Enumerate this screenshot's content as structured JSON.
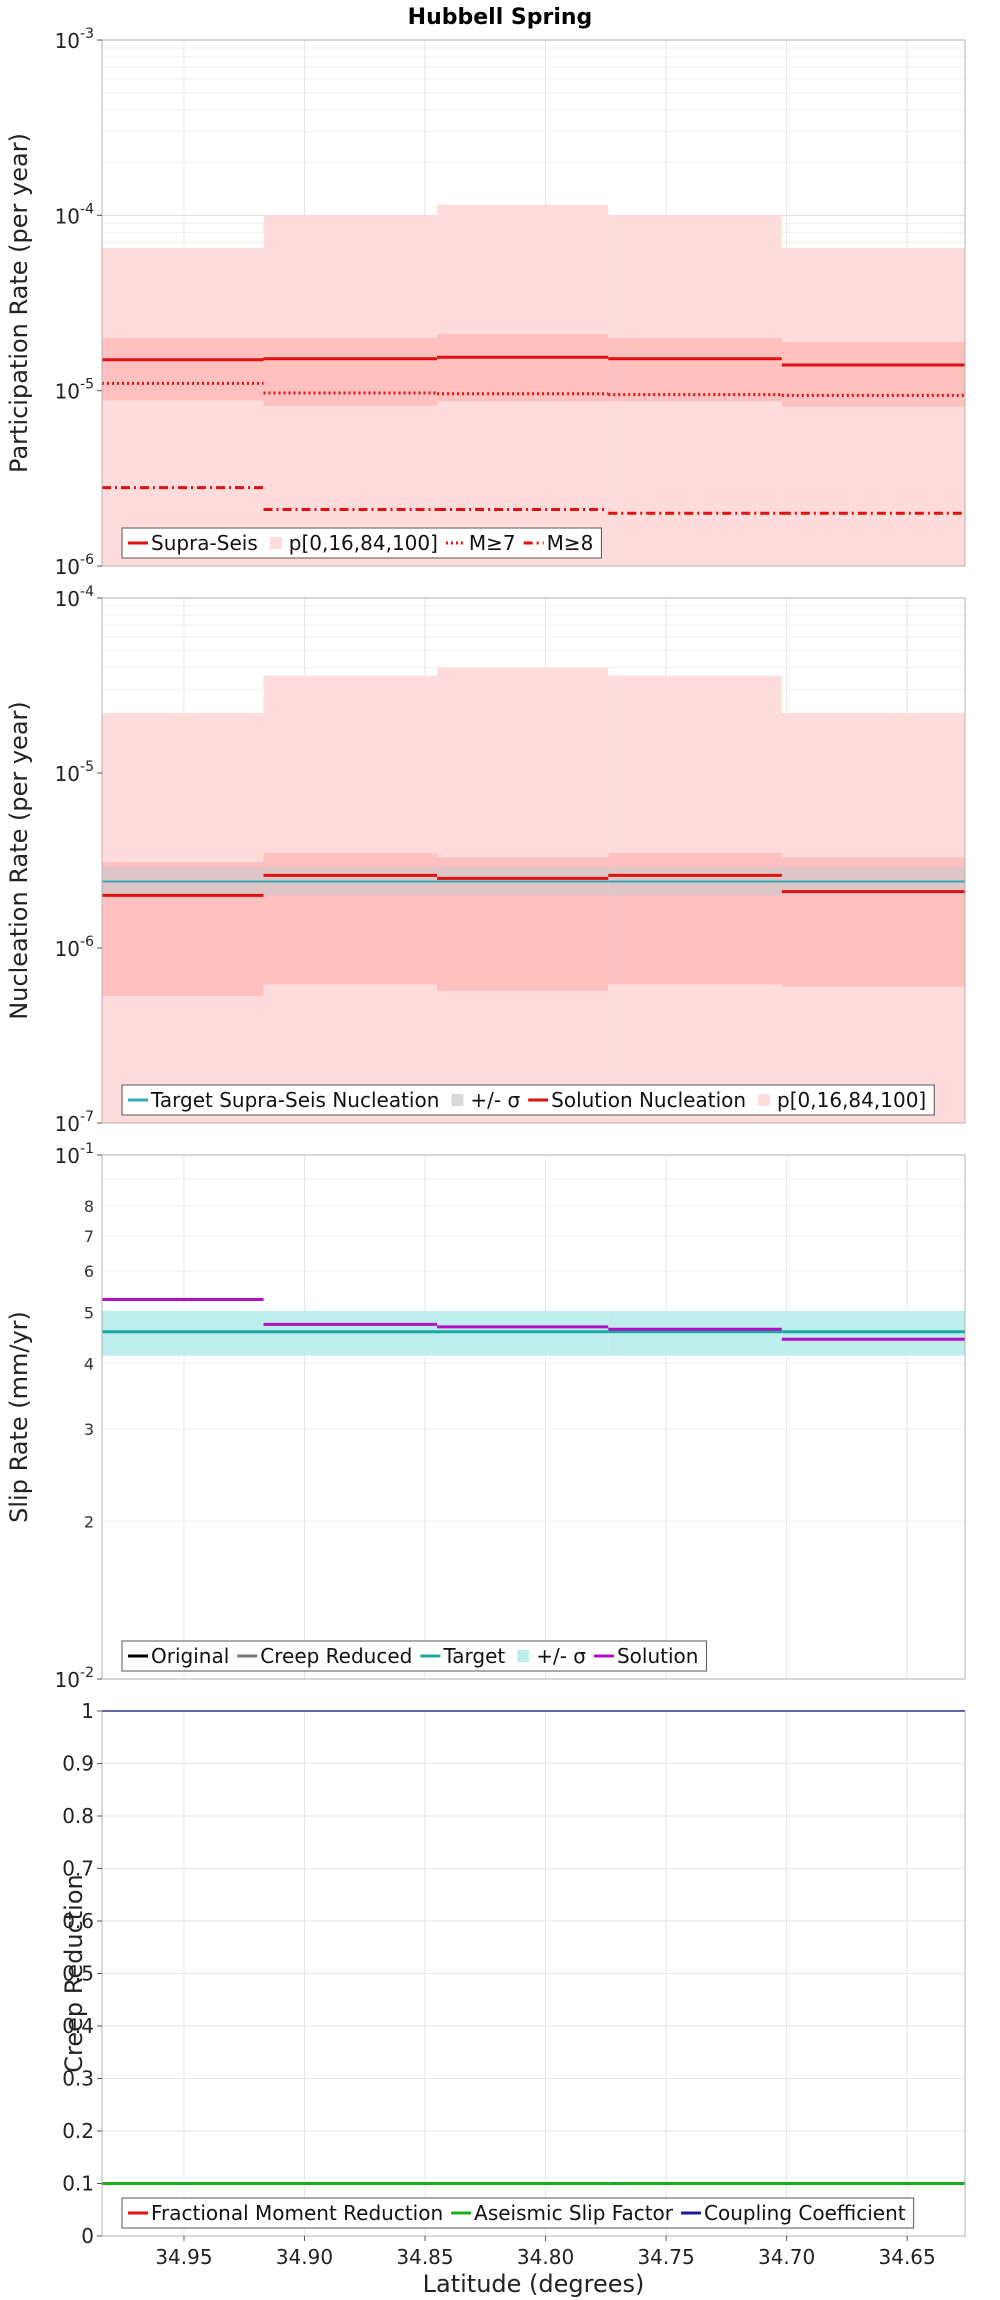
{
  "title": "Hubbell Spring",
  "x_label": "Latitude (degrees)",
  "x_ticks": [
    "34.95",
    "34.90",
    "34.85",
    "34.80",
    "34.75",
    "34.70",
    "34.65"
  ],
  "chart_data": [
    {
      "type": "line",
      "ylabel": "Participation Rate (per year)",
      "yscale": "log",
      "ylim": [
        1e-06,
        0.001
      ],
      "xlim": [
        34.984,
        34.626
      ],
      "y_ticks": [
        {
          "v": 0.001,
          "base": "10",
          "exp": "-3"
        },
        {
          "v": 0.0001,
          "base": "10",
          "exp": "-4"
        },
        {
          "v": 1e-05,
          "base": "10",
          "exp": "-5"
        },
        {
          "v": 1e-06,
          "base": "10",
          "exp": "-6"
        }
      ],
      "segment_edges": [
        34.984,
        34.917,
        34.845,
        34.774,
        34.702,
        34.626
      ],
      "series": [
        {
          "name": "p[0,16,84,100]",
          "kind": "band",
          "color": "#ffdcdc",
          "low": [
            1e-06,
            1e-06,
            1e-06,
            1e-06,
            1e-06
          ],
          "high": [
            6.5e-05,
            0.0001,
            0.000115,
            0.0001,
            6.5e-05
          ]
        },
        {
          "name": "",
          "kind": "band",
          "color": "#ffc0c0",
          "low": [
            8.8e-06,
            8.2e-06,
            8.7e-06,
            8.7e-06,
            8.1e-06
          ],
          "high": [
            2e-05,
            2e-05,
            2.1e-05,
            2e-05,
            1.9e-05
          ]
        },
        {
          "name": "Supra-Seis",
          "kind": "step",
          "color": "#e31010",
          "dash": "",
          "values": [
            1.5e-05,
            1.52e-05,
            1.55e-05,
            1.52e-05,
            1.4e-05
          ]
        },
        {
          "name": "M≥7",
          "kind": "step",
          "color": "#e31010",
          "dash": "2,3",
          "values": [
            1.1e-05,
            9.7e-06,
            9.6e-06,
            9.5e-06,
            9.4e-06
          ]
        },
        {
          "name": "M≥8",
          "kind": "step",
          "color": "#e31010",
          "dash": "9,4,2,4",
          "values": [
            2.8e-06,
            2.1e-06,
            2.1e-06,
            2e-06,
            2e-06
          ]
        }
      ],
      "legend": [
        {
          "label": "Supra-Seis",
          "swatch": "line",
          "color": "#e31010",
          "dash": ""
        },
        {
          "label": "p[0,16,84,100]",
          "swatch": "box",
          "color": "#ffdcdc",
          "dash": ""
        },
        {
          "label": "M≥7",
          "swatch": "line",
          "color": "#e31010",
          "dash": "2,3"
        },
        {
          "label": "M≥8",
          "swatch": "line",
          "color": "#e31010",
          "dash": "9,4,2,4"
        }
      ]
    },
    {
      "type": "line",
      "ylabel": "Nucleation Rate (per year)",
      "yscale": "log",
      "ylim": [
        1e-07,
        0.0001
      ],
      "xlim": [
        34.984,
        34.626
      ],
      "y_ticks": [
        {
          "v": 0.0001,
          "base": "10",
          "exp": "-4"
        },
        {
          "v": 1e-05,
          "base": "10",
          "exp": "-5"
        },
        {
          "v": 1e-06,
          "base": "10",
          "exp": "-6"
        },
        {
          "v": 1e-07,
          "base": "10",
          "exp": "-7"
        }
      ],
      "segment_edges": [
        34.984,
        34.917,
        34.845,
        34.774,
        34.702,
        34.626
      ],
      "series": [
        {
          "name": "p[0,16,84,100]",
          "kind": "band",
          "color": "#ffdcdc",
          "low": [
            1e-07,
            1e-07,
            1e-07,
            1e-07,
            1e-07
          ],
          "high": [
            2.2e-05,
            3.6e-05,
            4e-05,
            3.6e-05,
            2.2e-05
          ]
        },
        {
          "name": "",
          "kind": "band",
          "color": "#ffc0c0",
          "low": [
            5.3e-07,
            6.2e-07,
            5.7e-07,
            6.2e-07,
            6e-07
          ],
          "high": [
            3.1e-06,
            3.5e-06,
            3.3e-06,
            3.5e-06,
            3.3e-06
          ]
        },
        {
          "name": "+/- σ",
          "kind": "band",
          "color": "#c9c9c9",
          "opacity": 0.6,
          "low": [
            2e-06,
            2e-06,
            2e-06,
            2e-06,
            2e-06
          ],
          "high": [
            2.9e-06,
            2.9e-06,
            2.9e-06,
            2.9e-06,
            2.9e-06
          ]
        },
        {
          "name": "Target Supra-Seis Nucleation",
          "kind": "step",
          "color": "#3aa8b8",
          "dash": "",
          "values": [
            2.4e-06,
            2.4e-06,
            2.4e-06,
            2.4e-06,
            2.4e-06
          ],
          "width": 2
        },
        {
          "name": "Solution Nucleation",
          "kind": "step",
          "color": "#e31010",
          "dash": "",
          "values": [
            2e-06,
            2.6e-06,
            2.5e-06,
            2.6e-06,
            2.1e-06
          ]
        }
      ],
      "legend": [
        {
          "label": "Target Supra-Seis Nucleation",
          "swatch": "line",
          "color": "#3aa8b8",
          "dash": ""
        },
        {
          "label": "+/- σ",
          "swatch": "box",
          "color": "#d8d8d8",
          "dash": ""
        },
        {
          "label": "Solution Nucleation",
          "swatch": "line",
          "color": "#e31010",
          "dash": ""
        },
        {
          "label": "p[0,16,84,100]",
          "swatch": "box",
          "color": "#ffdcdc",
          "dash": ""
        }
      ]
    },
    {
      "type": "line",
      "ylabel": "Slip Rate (mm/yr)",
      "yscale": "log",
      "ylim": [
        0.01,
        0.1
      ],
      "xlim": [
        34.984,
        34.626
      ],
      "y_ticks": [
        {
          "v": 0.1,
          "base": "10",
          "exp": "-1"
        },
        {
          "v": 0.01,
          "base": "10",
          "exp": "-2"
        }
      ],
      "y_minor_labels": [
        "2",
        "3",
        "4",
        "5",
        "6",
        "7",
        "8"
      ],
      "segment_edges": [
        34.984,
        34.917,
        34.845,
        34.774,
        34.702,
        34.626
      ],
      "series": [
        {
          "name": "+/- σ",
          "kind": "band",
          "color": "#bfeeee",
          "low": [
            0.0414,
            0.0414,
            0.0414,
            0.0414,
            0.0414
          ],
          "high": [
            0.0504,
            0.0504,
            0.0504,
            0.0504,
            0.0504
          ]
        },
        {
          "name": "Target",
          "kind": "step",
          "color": "#1aa8a0",
          "dash": "",
          "values": [
            0.046,
            0.046,
            0.046,
            0.046,
            0.046
          ]
        },
        {
          "name": "Solution",
          "kind": "step",
          "color": "#b010c0",
          "dash": "",
          "values": [
            0.053,
            0.0475,
            0.047,
            0.0465,
            0.0445
          ]
        }
      ],
      "legend": [
        {
          "label": "Original",
          "swatch": "line",
          "color": "#000000",
          "dash": ""
        },
        {
          "label": "Creep Reduced",
          "swatch": "line",
          "color": "#777777",
          "dash": ""
        },
        {
          "label": "Target",
          "swatch": "line",
          "color": "#1aa8a0",
          "dash": ""
        },
        {
          "label": "+/- σ",
          "swatch": "box",
          "color": "#bfeeee",
          "dash": ""
        },
        {
          "label": "Solution",
          "swatch": "line",
          "color": "#b010c0",
          "dash": ""
        }
      ]
    },
    {
      "type": "line",
      "ylabel": "Creep Reduction",
      "yscale": "linear",
      "ylim": [
        0,
        1
      ],
      "xlim": [
        34.984,
        34.626
      ],
      "y_ticks": [
        {
          "v": 1,
          "label": "1"
        },
        {
          "v": 0.9,
          "label": "0.9"
        },
        {
          "v": 0.8,
          "label": "0.8"
        },
        {
          "v": 0.7,
          "label": "0.7"
        },
        {
          "v": 0.6,
          "label": "0.6"
        },
        {
          "v": 0.5,
          "label": "0.5"
        },
        {
          "v": 0.4,
          "label": "0.4"
        },
        {
          "v": 0.3,
          "label": "0.3"
        },
        {
          "v": 0.2,
          "label": "0.2"
        },
        {
          "v": 0.1,
          "label": "0.1"
        },
        {
          "v": 0,
          "label": "0"
        }
      ],
      "segment_edges": [
        34.984,
        34.917,
        34.845,
        34.774,
        34.702,
        34.626
      ],
      "series": [
        {
          "name": "Coupling Coefficient",
          "kind": "step",
          "color": "#1a1aa0",
          "dash": "",
          "values": [
            1,
            1,
            1,
            1,
            1
          ],
          "width": 2
        },
        {
          "name": "Aseismic Slip Factor",
          "kind": "step",
          "color": "#18b018",
          "dash": "",
          "values": [
            0.1,
            0.1,
            0.1,
            0.1,
            0.1
          ]
        }
      ],
      "legend": [
        {
          "label": "Fractional Moment Reduction",
          "swatch": "line",
          "color": "#e31010",
          "dash": ""
        },
        {
          "label": "Aseismic Slip Factor",
          "swatch": "line",
          "color": "#18b018",
          "dash": ""
        },
        {
          "label": "Coupling Coefficient",
          "swatch": "line",
          "color": "#1a1aa0",
          "dash": ""
        }
      ]
    }
  ]
}
